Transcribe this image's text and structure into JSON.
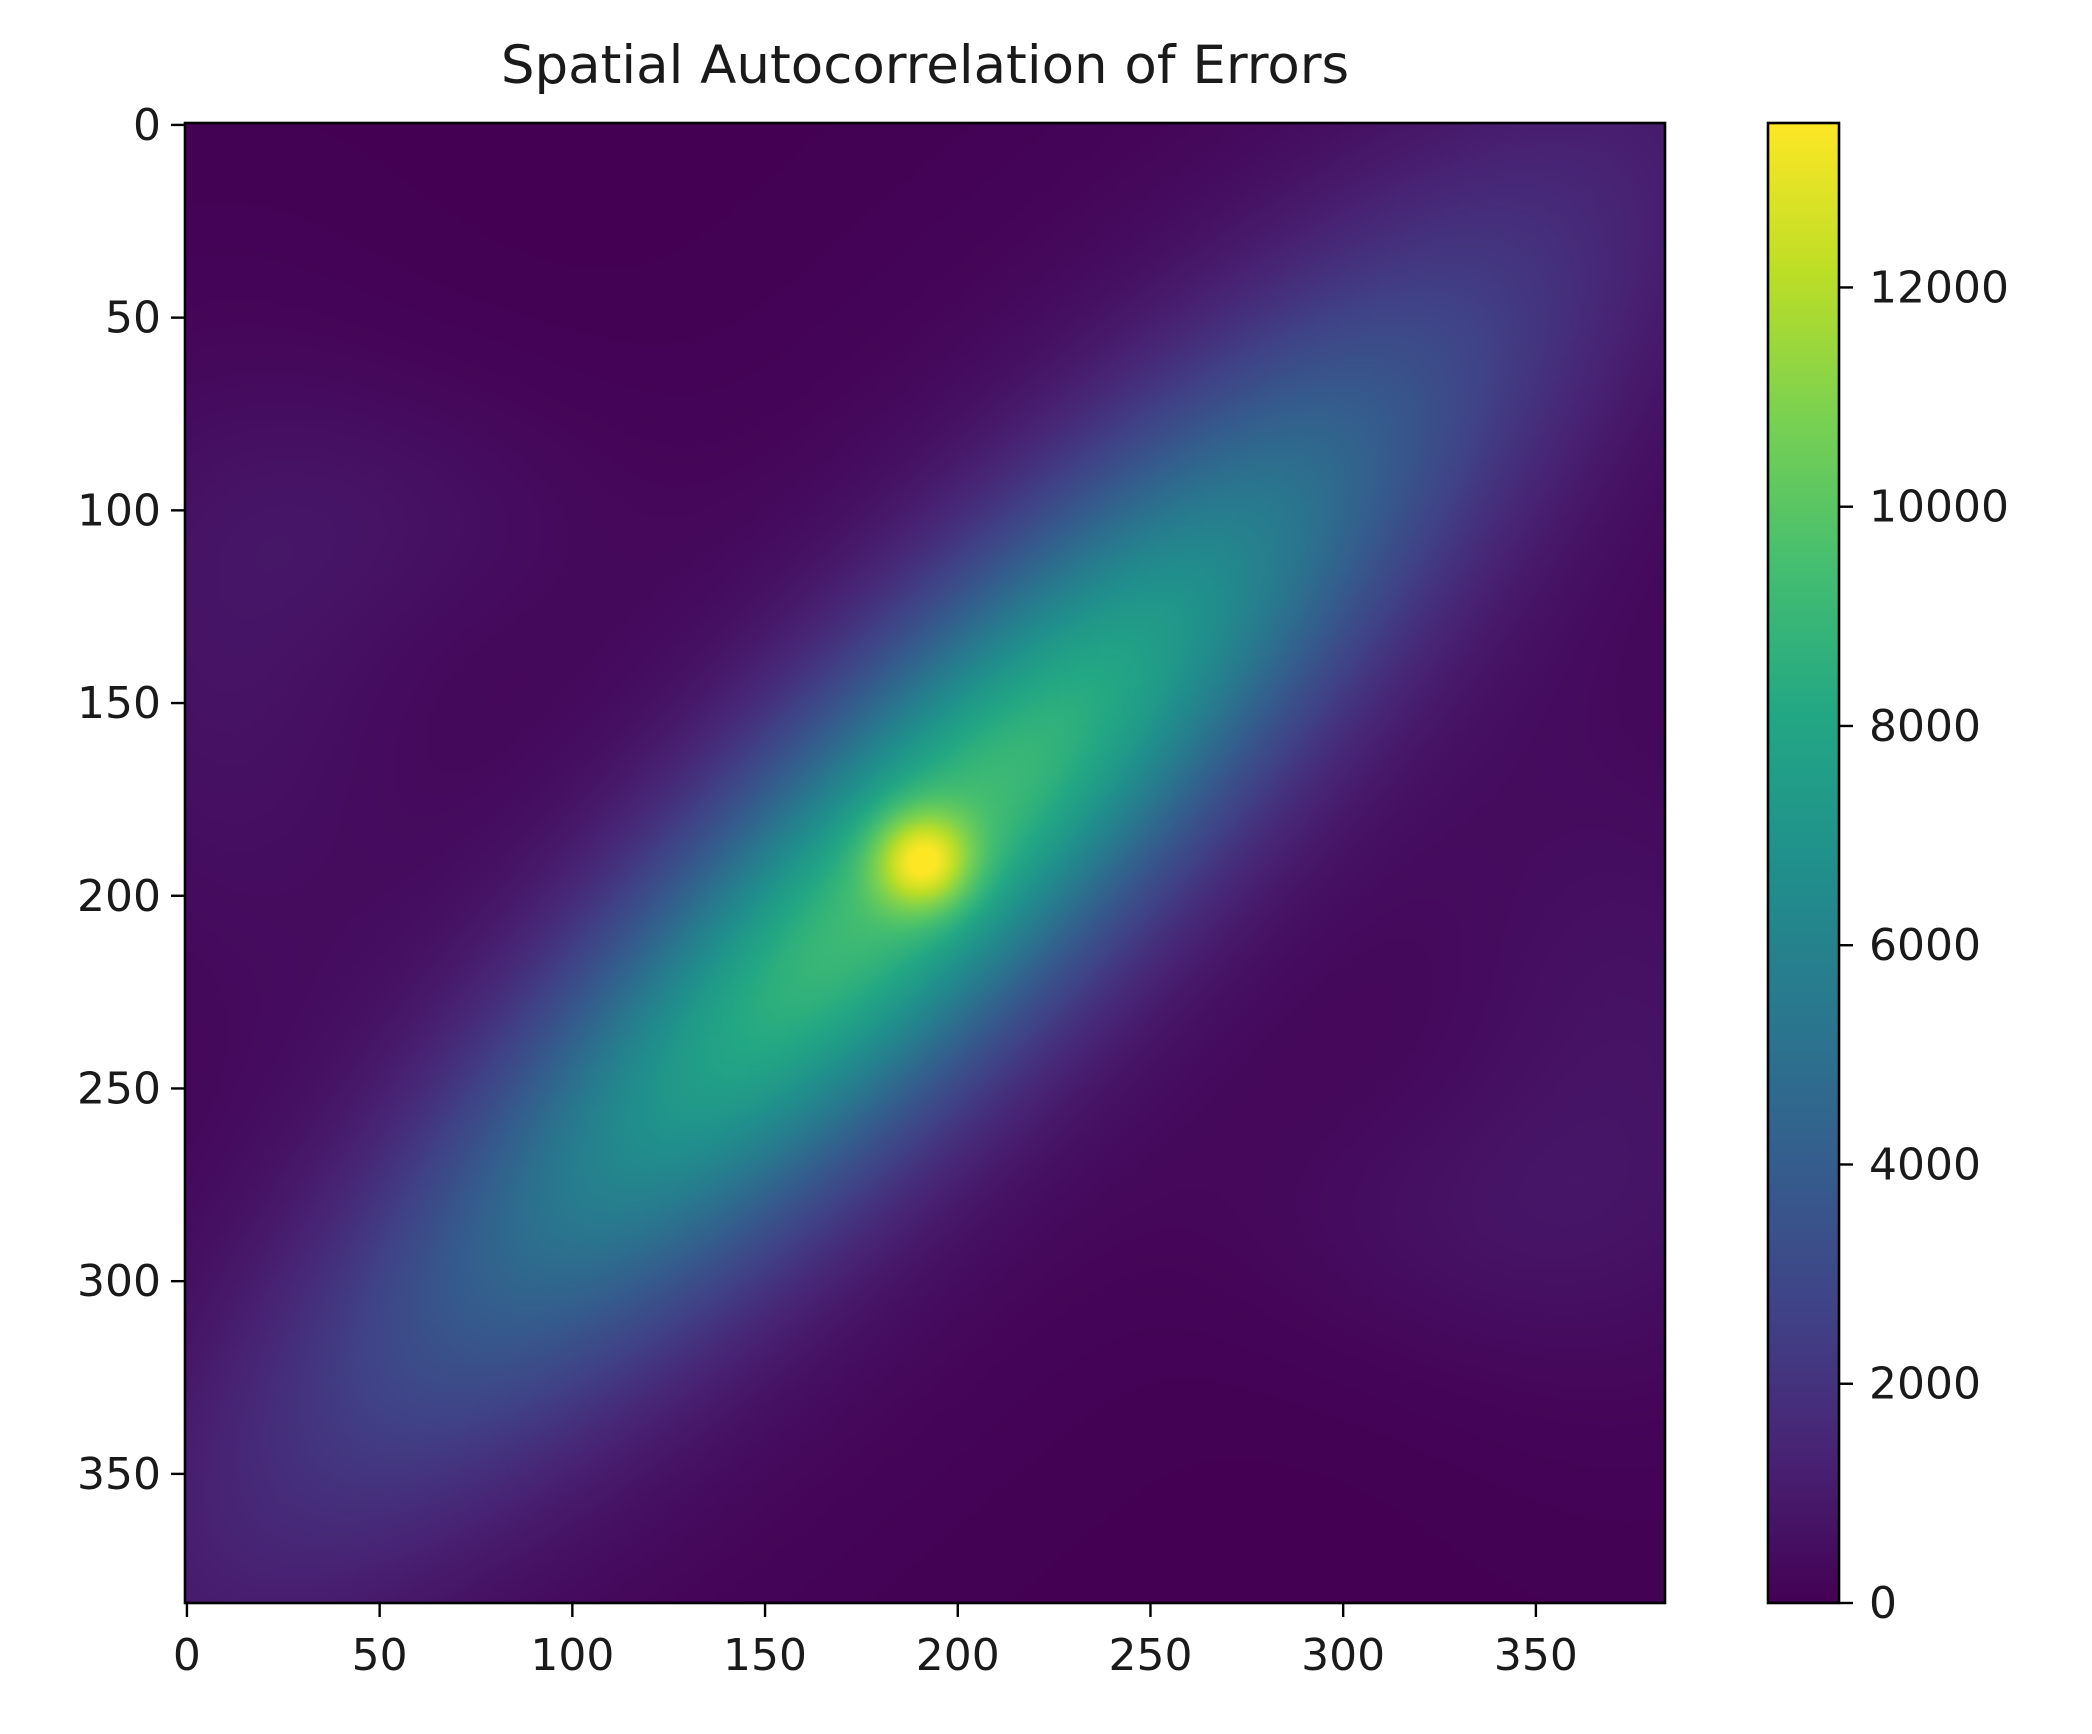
{
  "chart_data": {
    "type": "heatmap",
    "title": "Spatial Autocorrelation of Errors",
    "xlabel": "",
    "ylabel": "",
    "x_range": [
      0,
      383
    ],
    "y_range": [
      0,
      383
    ],
    "y_axis_inverted": true,
    "x_ticks": [
      "0",
      "50",
      "100",
      "150",
      "200",
      "250",
      "300",
      "350"
    ],
    "y_ticks": [
      "0",
      "50",
      "100",
      "150",
      "200",
      "250",
      "300",
      "350"
    ],
    "colormap": "viridis",
    "colorbar": {
      "range": [
        0,
        13500
      ],
      "ticks": [
        "0",
        "2000",
        "4000",
        "6000",
        "8000",
        "10000",
        "12000"
      ]
    },
    "peak": {
      "x": 191,
      "y": 191,
      "value": 13500
    },
    "structure": "elongated diagonal ridge from lower-left to upper-right, centered at the peak",
    "grid": false,
    "legend": "none"
  }
}
